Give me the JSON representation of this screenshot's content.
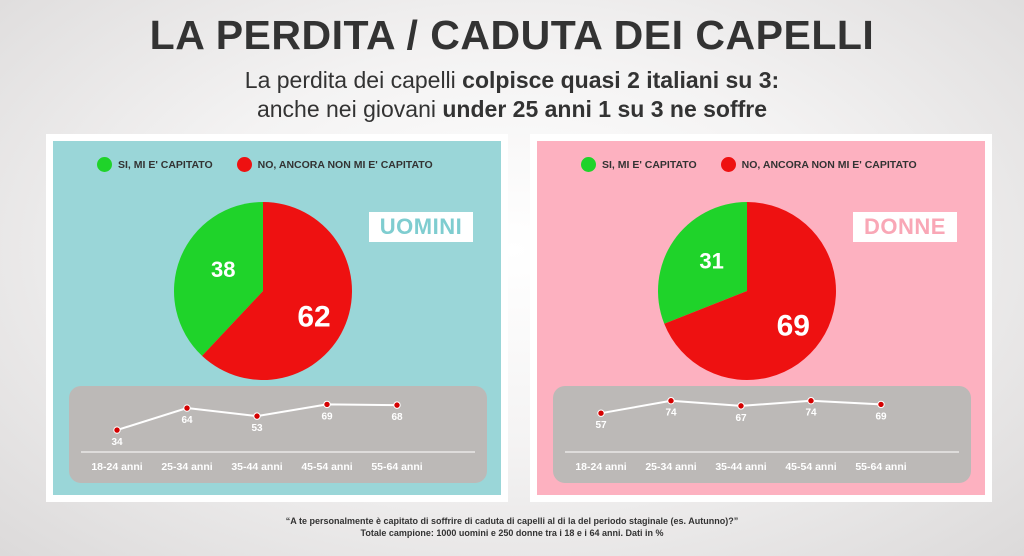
{
  "title": "LA PERDITA / CADUTA DEI CAPELLI",
  "subtitle": {
    "line1_pre": "La perdita dei capelli ",
    "line1_bold": "colpisce quasi 2 italiani su 3:",
    "line2_pre": "anche nei giovani ",
    "line2_bold": "under 25 anni 1 su 3 ne soffre"
  },
  "colors": {
    "yes": "#1fd32a",
    "no": "#ee1111",
    "men_bg": "#9ad6d8",
    "women_bg": "#fdb1c0",
    "trend_box": "#bcb9b7",
    "trend_line": "#ffffff",
    "trend_marker": "#d40000"
  },
  "legend": {
    "yes": "SI, MI E' CAPITATO",
    "no": "NO, ANCORA NON MI E' CAPITATO"
  },
  "footer": {
    "line1": "“A te personalmente è capitato di soffrire di caduta di capelli al di la del periodo staginale (es. Autunno)?”",
    "line2": "Totale campione: 1000 uomini e 250 donne tra i 18 e i 64 anni. Dati in %"
  },
  "chart_data": [
    {
      "type": "pie",
      "panel_label": "UOMINI",
      "slices": [
        {
          "name": "SI, MI E' CAPITATO",
          "value": 38,
          "label": "38"
        },
        {
          "name": "NO, ANCORA NON MI E' CAPITATO",
          "value": 62,
          "label": "62"
        }
      ]
    },
    {
      "type": "line",
      "panel_label": "UOMINI",
      "categories": [
        "18-24 anni",
        "25-34 anni",
        "35-44 anni",
        "45-54 anni",
        "55-64 anni"
      ],
      "values": [
        34,
        64,
        53,
        69,
        68
      ]
    },
    {
      "type": "pie",
      "panel_label": "DONNE",
      "slices": [
        {
          "name": "SI, MI E' CAPITATO",
          "value": 31,
          "label": "31"
        },
        {
          "name": "NO, ANCORA NON MI E' CAPITATO",
          "value": 69,
          "label": "69"
        }
      ]
    },
    {
      "type": "line",
      "panel_label": "DONNE",
      "categories": [
        "18-24 anni",
        "25-34 anni",
        "35-44 anni",
        "45-54 anni",
        "55-64 anni"
      ],
      "values": [
        57,
        74,
        67,
        74,
        69
      ]
    }
  ]
}
